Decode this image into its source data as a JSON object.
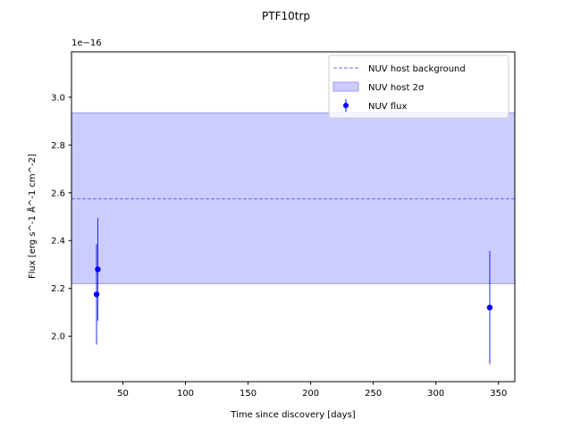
{
  "chart_data": {
    "type": "scatter",
    "title": "PTF10trp",
    "xlabel": "Time since discovery [days]",
    "ylabel": "Flux [erg s^-1 Å^-1 cm^-2]",
    "y_offset_label": "1e−16",
    "y_scale_exponent": -16,
    "xlim": [
      9,
      363
    ],
    "ylim": [
      1.81,
      3.19
    ],
    "x_ticks": [
      50,
      100,
      150,
      200,
      250,
      300,
      350
    ],
    "x_tick_labels": [
      "50",
      "100",
      "150",
      "200",
      "250",
      "300",
      "350"
    ],
    "y_ticks": [
      2.0,
      2.2,
      2.4,
      2.6,
      2.8,
      3.0
    ],
    "y_tick_labels": [
      "2.0",
      "2.2",
      "2.4",
      "2.6",
      "2.8",
      "3.0"
    ],
    "legend_position": "upper right",
    "series": [
      {
        "name": "NUV host background",
        "kind": "hline",
        "y": 2.575,
        "color": "#6b6bff",
        "linestyle": "dashed"
      },
      {
        "name": "NUV host 2σ",
        "kind": "band",
        "y_low": 2.22,
        "y_high": 2.935,
        "color": "#ccccff"
      },
      {
        "name": "NUV flux",
        "kind": "errorbar",
        "color": "#0000ff",
        "points": [
          {
            "x": 29,
            "y": 2.175,
            "yerr": 0.21
          },
          {
            "x": 30,
            "y": 2.28,
            "yerr": 0.215
          },
          {
            "x": 343,
            "y": 2.12,
            "yerr": 0.237
          }
        ]
      }
    ]
  }
}
